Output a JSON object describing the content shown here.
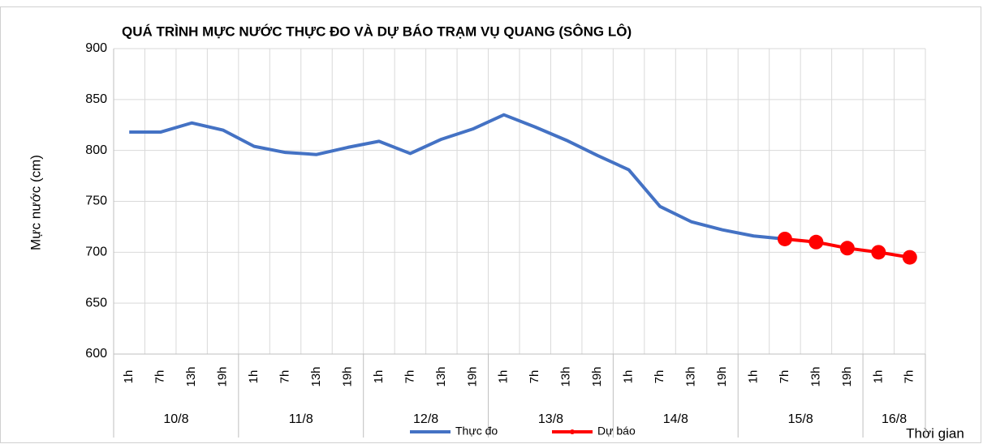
{
  "chart_data": {
    "type": "line",
    "title": "QUÁ TRÌNH MỰC NƯỚC THỰC ĐO VÀ DỰ BÁO TRẠM VỤ QUANG (SÔNG LÔ)",
    "y_label": "Mực nước (cm)",
    "x_label": "Thời gian",
    "groups": [
      {
        "label": "10/8",
        "categories": [
          "1h",
          "7h",
          "13h",
          "19h"
        ]
      },
      {
        "label": "11/8",
        "categories": [
          "1h",
          "7h",
          "13h",
          "19h"
        ]
      },
      {
        "label": "12/8",
        "categories": [
          "1h",
          "7h",
          "13h",
          "19h"
        ]
      },
      {
        "label": "13/8",
        "categories": [
          "1h",
          "7h",
          "13h",
          "19h"
        ]
      },
      {
        "label": "14/8",
        "categories": [
          "1h",
          "7h",
          "13h",
          "19h"
        ]
      },
      {
        "label": "15/8",
        "categories": [
          "1h",
          "7h",
          "13h",
          "19h"
        ]
      },
      {
        "label": "16/8",
        "categories": [
          "1h",
          "7h"
        ]
      }
    ],
    "series": [
      {
        "name": "Thực đo",
        "color": "#4472c4",
        "markers": false,
        "values": [
          818,
          818,
          827,
          820,
          804,
          798,
          796,
          803,
          809,
          797,
          811,
          821,
          835,
          823,
          810,
          795,
          781,
          745,
          730,
          722,
          716,
          713,
          null,
          null,
          null,
          null
        ]
      },
      {
        "name": "Dự báo",
        "color": "#ff0000",
        "markers": true,
        "values": [
          null,
          null,
          null,
          null,
          null,
          null,
          null,
          null,
          null,
          null,
          null,
          null,
          null,
          null,
          null,
          null,
          null,
          null,
          null,
          null,
          null,
          713,
          710,
          704,
          700,
          695
        ]
      }
    ],
    "ylim": [
      600,
      900
    ],
    "yticks": [
      600,
      650,
      700,
      750,
      800,
      850,
      900
    ],
    "grid": true
  }
}
